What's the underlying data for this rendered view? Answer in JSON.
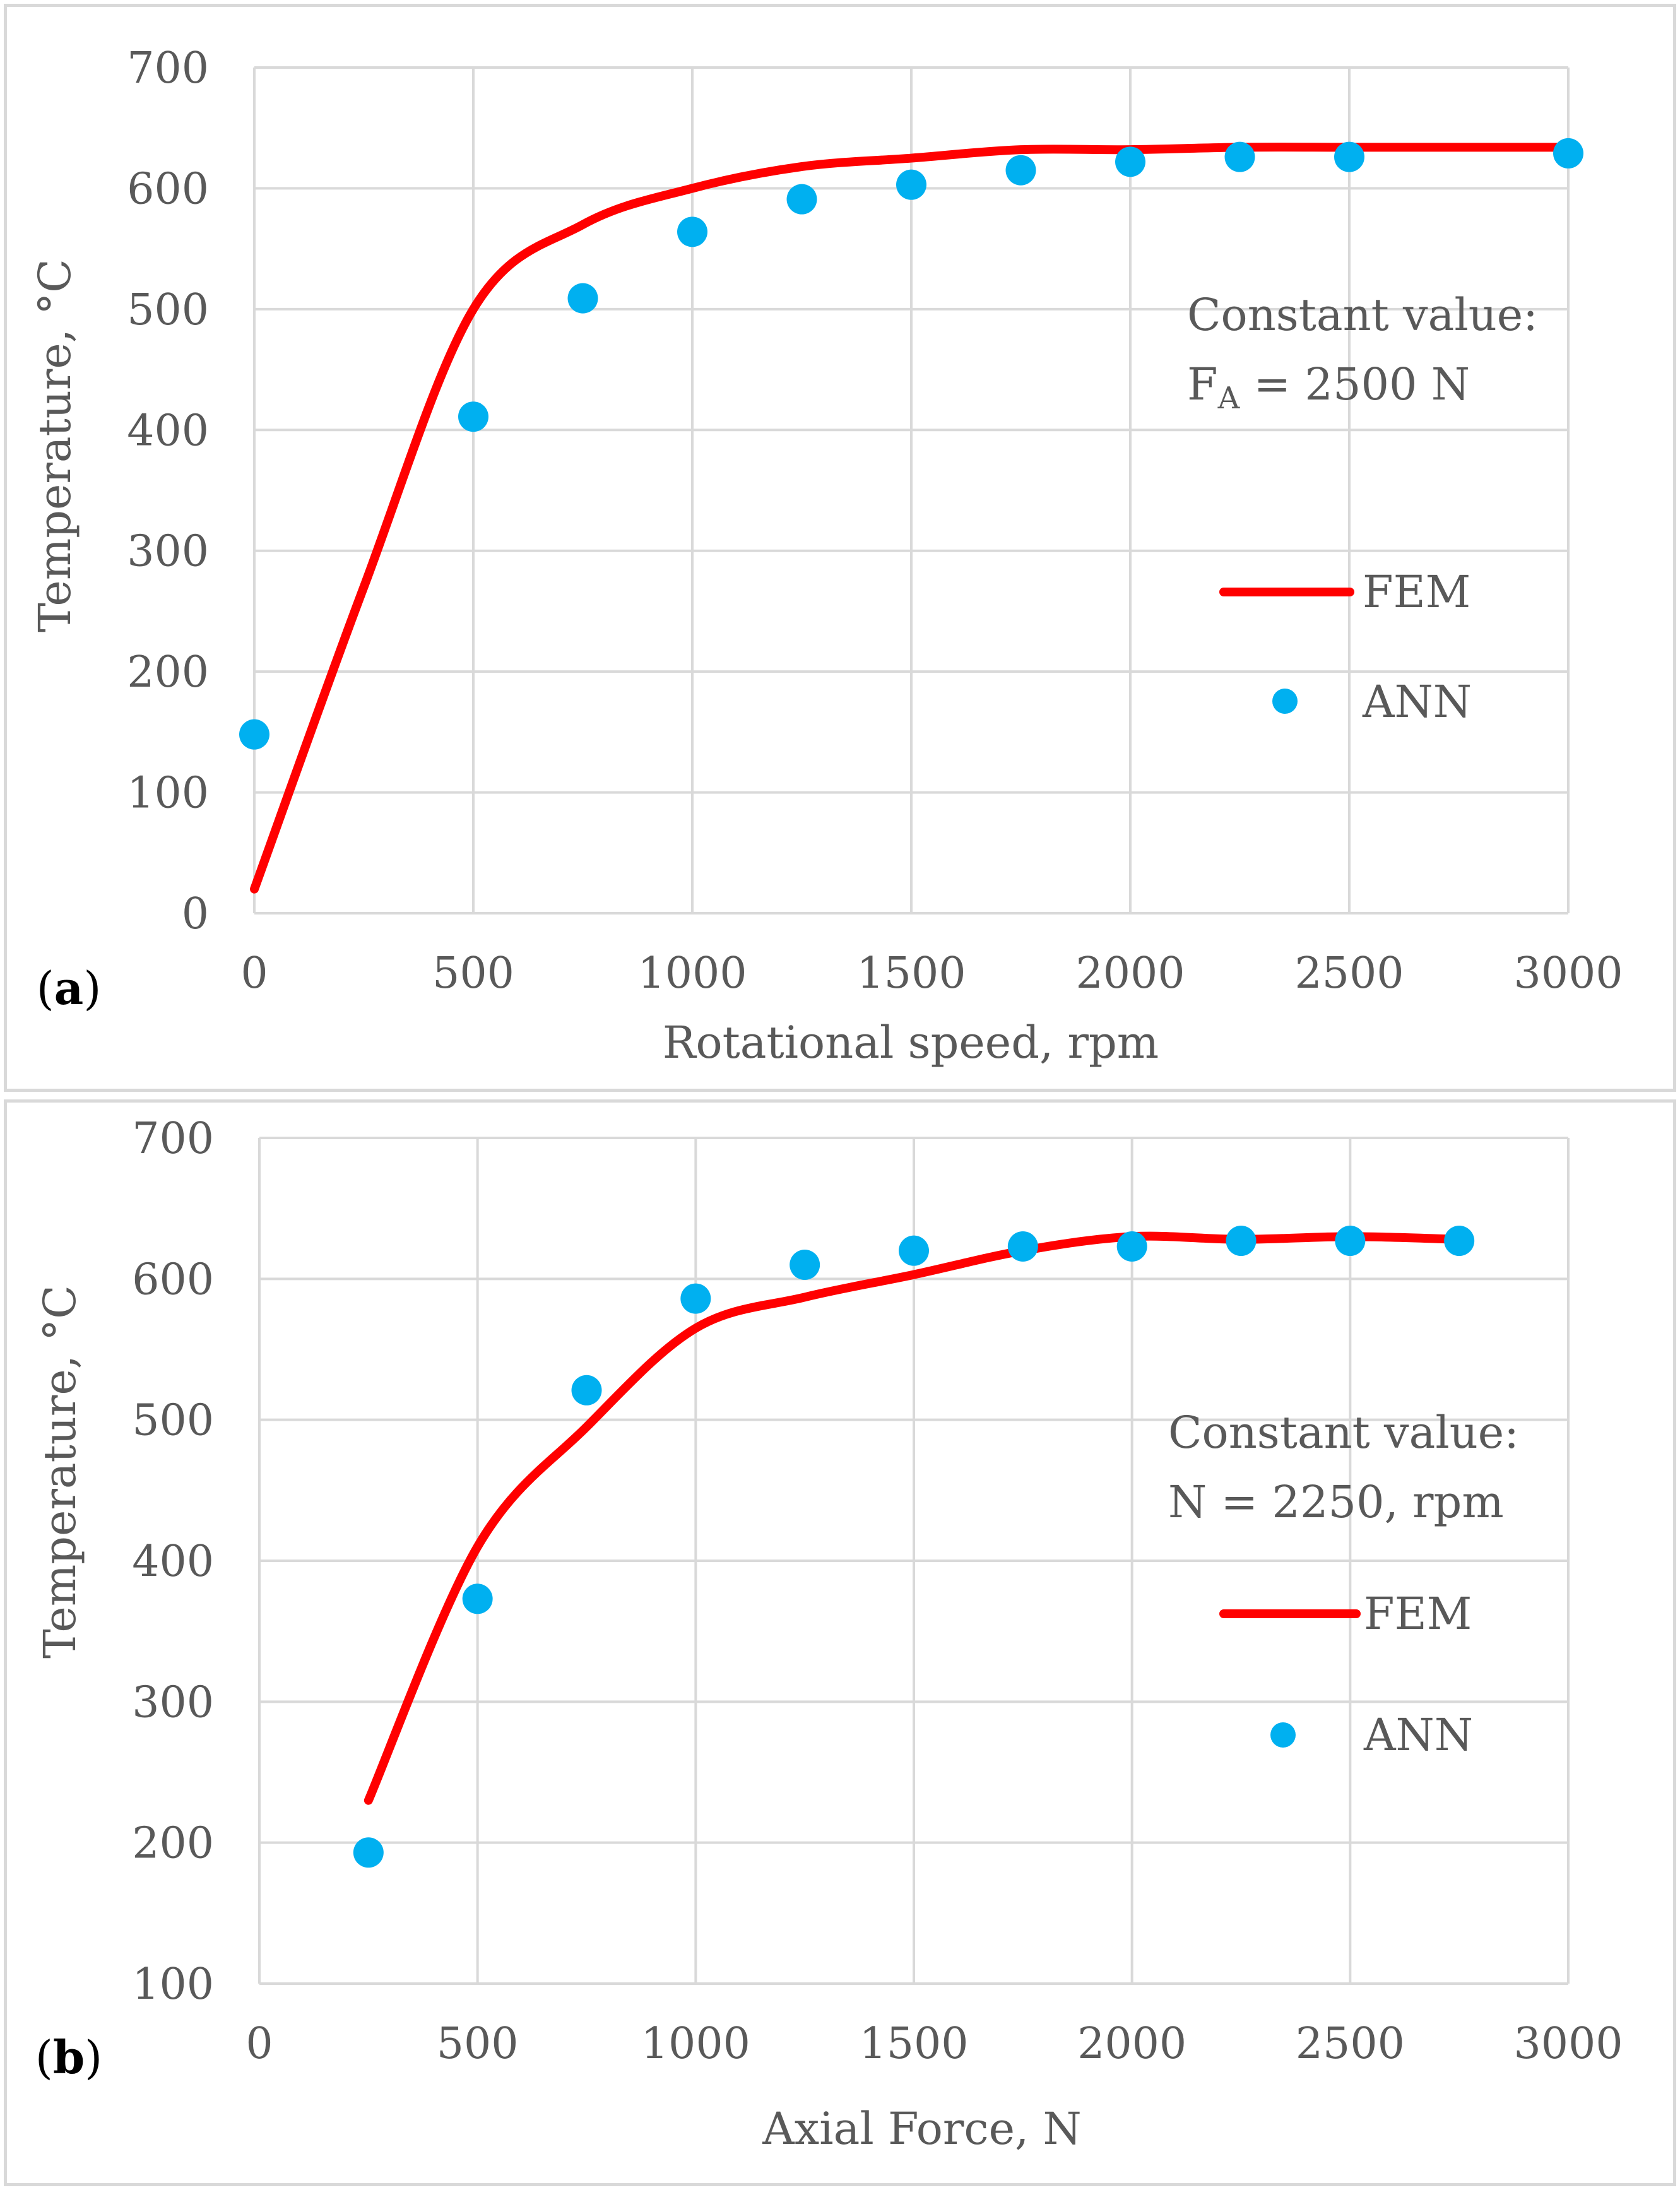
{
  "chart_data": [
    {
      "type": "line",
      "panel_label": "a",
      "title": "",
      "xlabel": "Rotational speed, rpm",
      "ylabel": "Temperature, °C",
      "xlim": [
        0,
        3000
      ],
      "ylim": [
        0,
        700
      ],
      "xticks": [
        0,
        500,
        1000,
        1500,
        2000,
        2500,
        3000
      ],
      "yticks": [
        0,
        100,
        200,
        300,
        400,
        500,
        600,
        700
      ],
      "grid": true,
      "series": [
        {
          "name": "FEM",
          "style": "line",
          "color": "#ff0000",
          "x": [
            0,
            250,
            500,
            750,
            1000,
            1250,
            1500,
            1750,
            2000,
            2250,
            2500,
            2750,
            3000
          ],
          "y": [
            20,
            270,
            500,
            570,
            600,
            618,
            625,
            632,
            632,
            634,
            634,
            634,
            634
          ]
        },
        {
          "name": "ANN",
          "style": "scatter",
          "color": "#00b0f0",
          "x": [
            0,
            500,
            750,
            1000,
            1250,
            1500,
            1750,
            2000,
            2250,
            2500,
            3000
          ],
          "y": [
            148,
            411,
            509,
            564,
            591,
            603,
            615,
            622,
            626,
            626,
            629
          ]
        }
      ],
      "annotation": {
        "line1": "Constant value:",
        "line2_prefix": "F",
        "line2_sub": "A",
        "line2_suffix": " = 2500 N"
      }
    },
    {
      "type": "line",
      "panel_label": "b",
      "title": "",
      "xlabel": "Axial Force, N",
      "ylabel": "Temperature, °C",
      "xlim": [
        0,
        3000
      ],
      "ylim": [
        100,
        700
      ],
      "xticks": [
        0,
        500,
        1000,
        1500,
        2000,
        2500,
        3000
      ],
      "yticks": [
        100,
        200,
        300,
        400,
        500,
        600,
        700
      ],
      "grid": true,
      "series": [
        {
          "name": "FEM",
          "style": "line",
          "color": "#ff0000",
          "x": [
            250,
            500,
            750,
            1000,
            1250,
            1500,
            1750,
            2000,
            2250,
            2500,
            2750
          ],
          "y": [
            230,
            410,
            495,
            565,
            587,
            603,
            620,
            630,
            628,
            630,
            628
          ]
        },
        {
          "name": "ANN",
          "style": "scatter",
          "color": "#00b0f0",
          "x": [
            250,
            500,
            750,
            1000,
            1250,
            1500,
            1750,
            2000,
            2250,
            2500,
            2750
          ],
          "y": [
            193,
            373,
            521,
            586,
            610,
            620,
            623,
            623,
            627,
            627,
            627
          ]
        }
      ],
      "annotation": {
        "line1": "Constant value:",
        "line2": "N = 2250, rpm"
      }
    }
  ]
}
